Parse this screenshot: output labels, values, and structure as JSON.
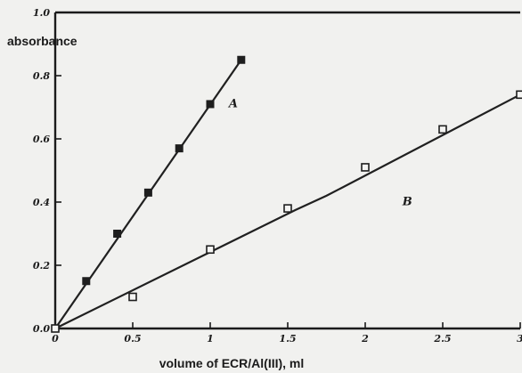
{
  "chart_data": {
    "type": "line",
    "title": "",
    "xlabel": "volume of ECR/Al(III), ml",
    "ylabel": "absorbance",
    "xlim": [
      0,
      3
    ],
    "ylim": [
      0,
      1.0
    ],
    "x_ticks": [
      "0",
      "0.5",
      "1",
      "1.5",
      "2",
      "2.5",
      "3"
    ],
    "y_ticks": [
      "0.0",
      "0.2",
      "0.4",
      "0.6",
      "0.8",
      "1.0"
    ],
    "grid": false,
    "series": [
      {
        "name": "A",
        "marker": "filled-square",
        "x": [
          0,
          0.2,
          0.4,
          0.6,
          0.8,
          1.0,
          1.2
        ],
        "y": [
          0.0,
          0.15,
          0.3,
          0.43,
          0.57,
          0.71,
          0.85
        ]
      },
      {
        "name": "B",
        "marker": "open-square",
        "x": [
          0,
          0.5,
          1.0,
          1.5,
          2.0,
          2.5,
          3.0
        ],
        "y": [
          0.0,
          0.1,
          0.25,
          0.38,
          0.51,
          0.63,
          0.74
        ]
      }
    ],
    "line_paths": [
      {
        "series": "A",
        "x": [
          0,
          1.2
        ],
        "y": [
          0.0,
          0.85
        ]
      },
      {
        "series": "B",
        "x": [
          0,
          1.55,
          1.75,
          3.0
        ],
        "y": [
          0.0,
          0.375,
          0.42,
          0.74
        ]
      }
    ]
  }
}
